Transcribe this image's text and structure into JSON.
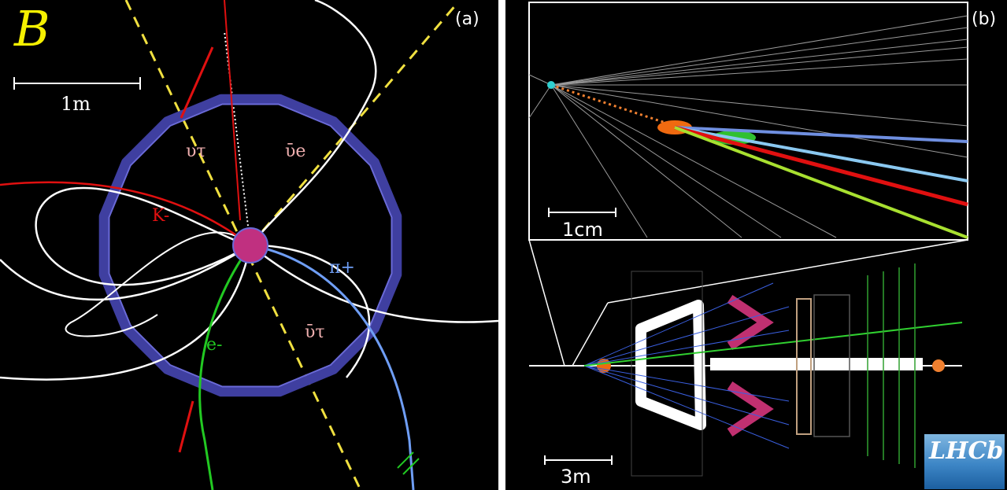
{
  "panel_a": {
    "label": "(a)",
    "logo": "B",
    "scale_label": "1m",
    "particles": {
      "nu_tau": "υτ",
      "nu_e_bar": "ῡe",
      "kaon": "K-",
      "pion": "π+",
      "electron": "e-",
      "nu_tau_bar": "ῡτ"
    }
  },
  "panel_b": {
    "label": "(b)",
    "inset_scale_label": "1cm",
    "scale_label": "3m",
    "logo": "LHCb"
  },
  "colors": {
    "background": "#000000",
    "calorimeter": "#3f3fa0",
    "kaon": "#e01010",
    "pion": "#6f9ef5",
    "electron": "#22c922",
    "neutrino": "#f0e040",
    "tracks": "#ffffff",
    "logo_b": "#f5f000"
  }
}
